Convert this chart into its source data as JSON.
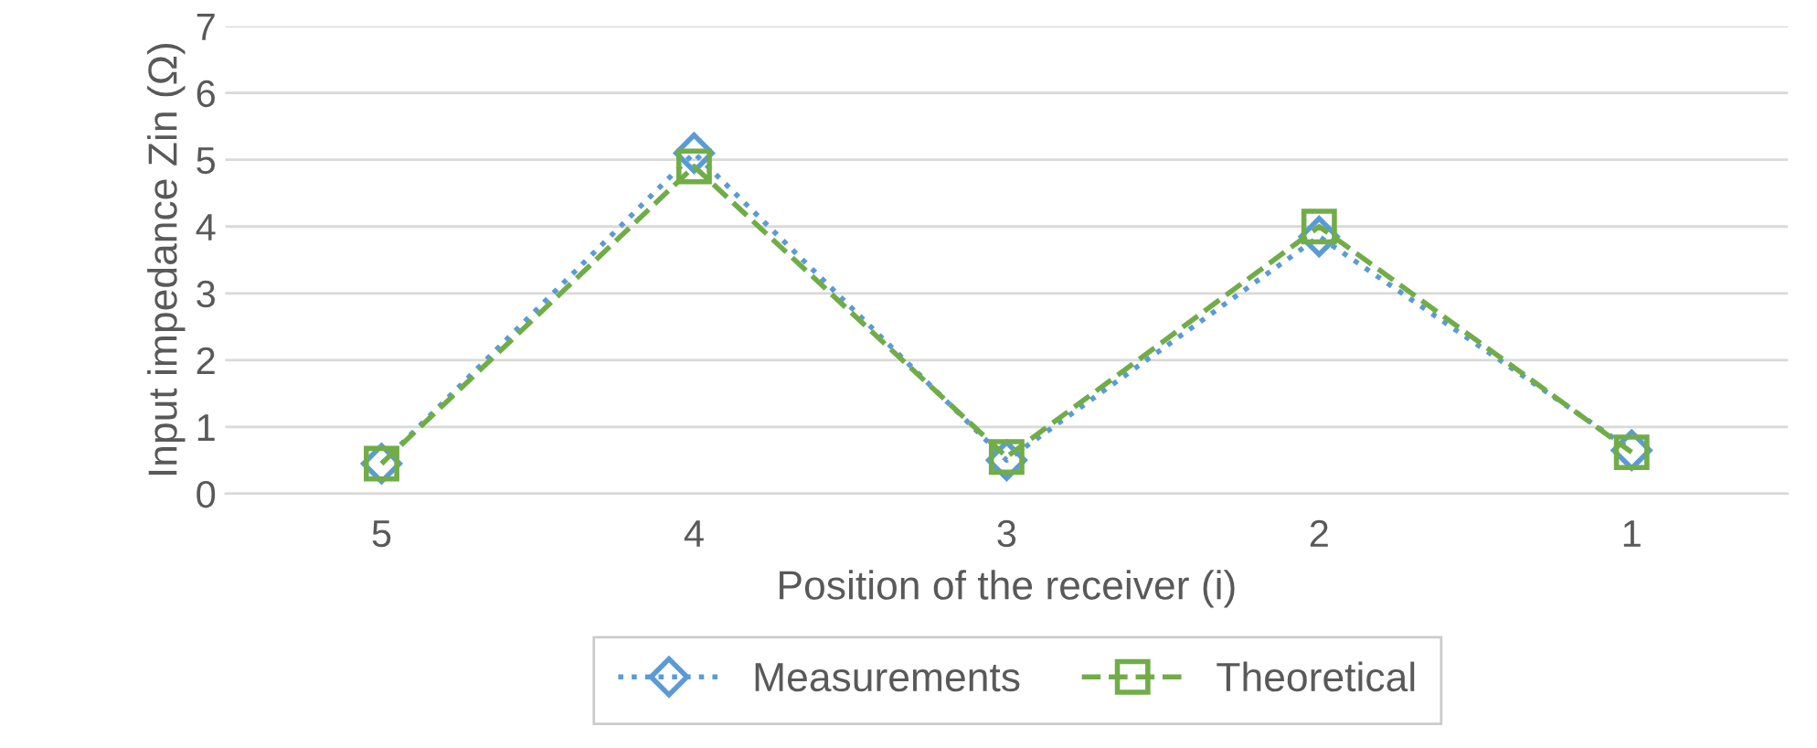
{
  "chart_data": {
    "type": "line",
    "xlabel": "Position of the receiver (i)",
    "ylabel": "Input impedance Zin (Ω)",
    "categories": [
      "5",
      "4",
      "3",
      "2",
      "1"
    ],
    "series": [
      {
        "name": "Measurements",
        "color": "#5b9bd5",
        "values": [
          0.45,
          5.1,
          0.5,
          3.85,
          0.65
        ],
        "marker": "diamond",
        "line_style": "dotted"
      },
      {
        "name": "Theoretical",
        "color": "#70ad47",
        "values": [
          0.45,
          4.9,
          0.55,
          4.0,
          0.62
        ],
        "marker": "square",
        "line_style": "dashed"
      }
    ],
    "ylim": [
      0,
      7
    ],
    "yticks": [
      0,
      1,
      2,
      3,
      4,
      5,
      6,
      7
    ],
    "grid": "y",
    "legend": "bottom"
  }
}
